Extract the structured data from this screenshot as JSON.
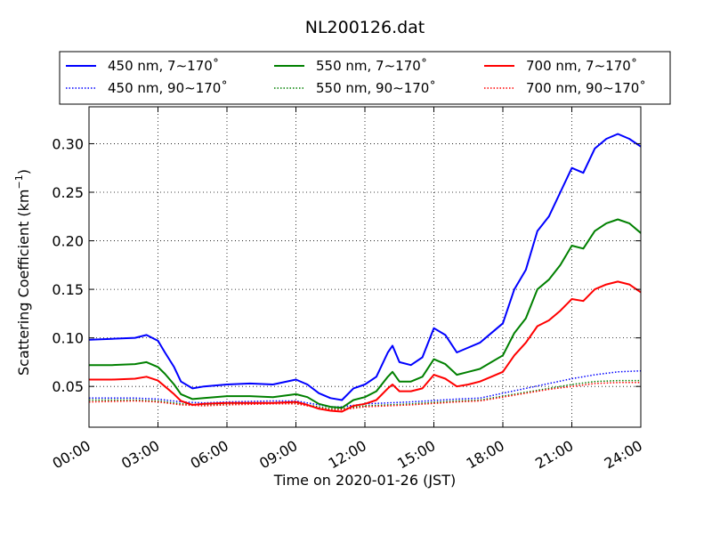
{
  "chart_data": {
    "type": "line",
    "title": "NL200126.dat",
    "xlabel": "Time on 2020-01-26 (JST)",
    "ylabel_main": "Scattering Coefficient (km",
    "ylabel_sup": "−1",
    "ylabel_close": ")",
    "xlim": [
      0,
      24
    ],
    "ylim": [
      0.008,
      0.338
    ],
    "x_ticks": [
      {
        "value": 0,
        "label": "00:00"
      },
      {
        "value": 3,
        "label": "03:00"
      },
      {
        "value": 6,
        "label": "06:00"
      },
      {
        "value": 9,
        "label": "09:00"
      },
      {
        "value": 12,
        "label": "12:00"
      },
      {
        "value": 15,
        "label": "15:00"
      },
      {
        "value": 18,
        "label": "18:00"
      },
      {
        "value": 21,
        "label": "21:00"
      },
      {
        "value": 24,
        "label": "24:00"
      }
    ],
    "y_ticks": [
      {
        "value": 0.05,
        "label": "0.05"
      },
      {
        "value": 0.1,
        "label": "0.10"
      },
      {
        "value": 0.15,
        "label": "0.15"
      },
      {
        "value": 0.2,
        "label": "0.20"
      },
      {
        "value": 0.25,
        "label": "0.25"
      },
      {
        "value": 0.3,
        "label": "0.30"
      }
    ],
    "grid": true,
    "legend_position": "top, above plot",
    "series": [
      {
        "name": "450 nm, 7∼170˚",
        "color": "#0000ff",
        "style": "solid",
        "x": [
          0,
          1,
          2,
          2.5,
          3,
          3.3,
          3.7,
          4,
          4.5,
          5,
          6,
          7,
          8,
          9,
          9.5,
          10,
          10.5,
          11,
          11.5,
          12,
          12.5,
          13,
          13.2,
          13.5,
          14,
          14.5,
          15,
          15.5,
          16,
          16.5,
          17,
          17.5,
          18,
          18.5,
          19,
          19.5,
          20,
          20.5,
          21,
          21.5,
          22,
          22.5,
          23,
          23.5,
          24
        ],
        "y": [
          0.098,
          0.099,
          0.1,
          0.103,
          0.097,
          0.085,
          0.07,
          0.055,
          0.048,
          0.05,
          0.052,
          0.053,
          0.052,
          0.057,
          0.052,
          0.043,
          0.038,
          0.036,
          0.048,
          0.052,
          0.06,
          0.085,
          0.092,
          0.075,
          0.072,
          0.08,
          0.11,
          0.103,
          0.085,
          0.09,
          0.095,
          0.105,
          0.115,
          0.15,
          0.17,
          0.21,
          0.225,
          0.25,
          0.275,
          0.27,
          0.295,
          0.305,
          0.31,
          0.305,
          0.297
        ]
      },
      {
        "name": "550 nm, 7∼170˚",
        "color": "#008000",
        "style": "solid",
        "x": [
          0,
          1,
          2,
          2.5,
          3,
          3.3,
          3.7,
          4,
          4.5,
          5,
          6,
          7,
          8,
          9,
          9.5,
          10,
          10.5,
          11,
          11.5,
          12,
          12.5,
          13,
          13.2,
          13.5,
          14,
          14.5,
          15,
          15.5,
          16,
          16.5,
          17,
          17.5,
          18,
          18.5,
          19,
          19.5,
          20,
          20.5,
          21,
          21.5,
          22,
          22.5,
          23,
          23.5,
          24
        ],
        "y": [
          0.072,
          0.072,
          0.073,
          0.075,
          0.07,
          0.063,
          0.052,
          0.042,
          0.037,
          0.038,
          0.04,
          0.04,
          0.039,
          0.042,
          0.039,
          0.032,
          0.029,
          0.028,
          0.036,
          0.039,
          0.045,
          0.06,
          0.065,
          0.055,
          0.055,
          0.06,
          0.078,
          0.073,
          0.062,
          0.065,
          0.068,
          0.075,
          0.082,
          0.105,
          0.12,
          0.15,
          0.16,
          0.175,
          0.195,
          0.192,
          0.21,
          0.218,
          0.222,
          0.218,
          0.208
        ]
      },
      {
        "name": "700 nm, 7∼170˚",
        "color": "#ff0000",
        "style": "solid",
        "x": [
          0,
          1,
          2,
          2.5,
          3,
          3.3,
          3.7,
          4,
          4.5,
          5,
          6,
          7,
          8,
          9,
          9.5,
          10,
          10.5,
          11,
          11.5,
          12,
          12.5,
          13,
          13.2,
          13.5,
          14,
          14.5,
          15,
          15.5,
          16,
          16.5,
          17,
          17.5,
          18,
          18.5,
          19,
          19.5,
          20,
          20.5,
          21,
          21.5,
          22,
          22.5,
          23,
          23.5,
          24
        ],
        "y": [
          0.057,
          0.057,
          0.058,
          0.06,
          0.056,
          0.05,
          0.042,
          0.035,
          0.031,
          0.032,
          0.033,
          0.033,
          0.033,
          0.034,
          0.031,
          0.027,
          0.025,
          0.024,
          0.03,
          0.032,
          0.036,
          0.048,
          0.052,
          0.045,
          0.045,
          0.048,
          0.062,
          0.058,
          0.05,
          0.052,
          0.055,
          0.06,
          0.065,
          0.082,
          0.095,
          0.112,
          0.118,
          0.128,
          0.14,
          0.138,
          0.15,
          0.155,
          0.158,
          0.155,
          0.147
        ]
      },
      {
        "name": "450 nm, 90∼170˚",
        "color": "#0000ff",
        "style": "dotted",
        "x": [
          0,
          2,
          3,
          4,
          5,
          6,
          8,
          9,
          10,
          10.5,
          11,
          12,
          14,
          16,
          17,
          18,
          19,
          20,
          21,
          22,
          23,
          24
        ],
        "y": [
          0.038,
          0.038,
          0.037,
          0.034,
          0.033,
          0.034,
          0.035,
          0.035,
          0.031,
          0.029,
          0.029,
          0.032,
          0.034,
          0.037,
          0.038,
          0.043,
          0.048,
          0.053,
          0.058,
          0.062,
          0.065,
          0.066
        ]
      },
      {
        "name": "550 nm, 90∼170˚",
        "color": "#008000",
        "style": "dotted",
        "x": [
          0,
          2,
          3,
          4,
          5,
          6,
          8,
          9,
          10,
          10.5,
          11,
          12,
          14,
          16,
          17,
          18,
          19,
          20,
          21,
          22,
          23,
          24
        ],
        "y": [
          0.036,
          0.036,
          0.035,
          0.032,
          0.031,
          0.032,
          0.033,
          0.033,
          0.029,
          0.027,
          0.027,
          0.03,
          0.032,
          0.035,
          0.036,
          0.04,
          0.044,
          0.048,
          0.052,
          0.055,
          0.056,
          0.056
        ]
      },
      {
        "name": "700 nm, 90∼170˚",
        "color": "#ff0000",
        "style": "dotted",
        "x": [
          0,
          2,
          3,
          4,
          5,
          6,
          8,
          9,
          10,
          10.5,
          11,
          12,
          14,
          16,
          17,
          18,
          19,
          20,
          21,
          22,
          23,
          24
        ],
        "y": [
          0.034,
          0.035,
          0.034,
          0.031,
          0.03,
          0.031,
          0.032,
          0.032,
          0.028,
          0.026,
          0.026,
          0.029,
          0.031,
          0.034,
          0.035,
          0.039,
          0.043,
          0.047,
          0.05,
          0.053,
          0.054,
          0.054
        ]
      }
    ]
  }
}
